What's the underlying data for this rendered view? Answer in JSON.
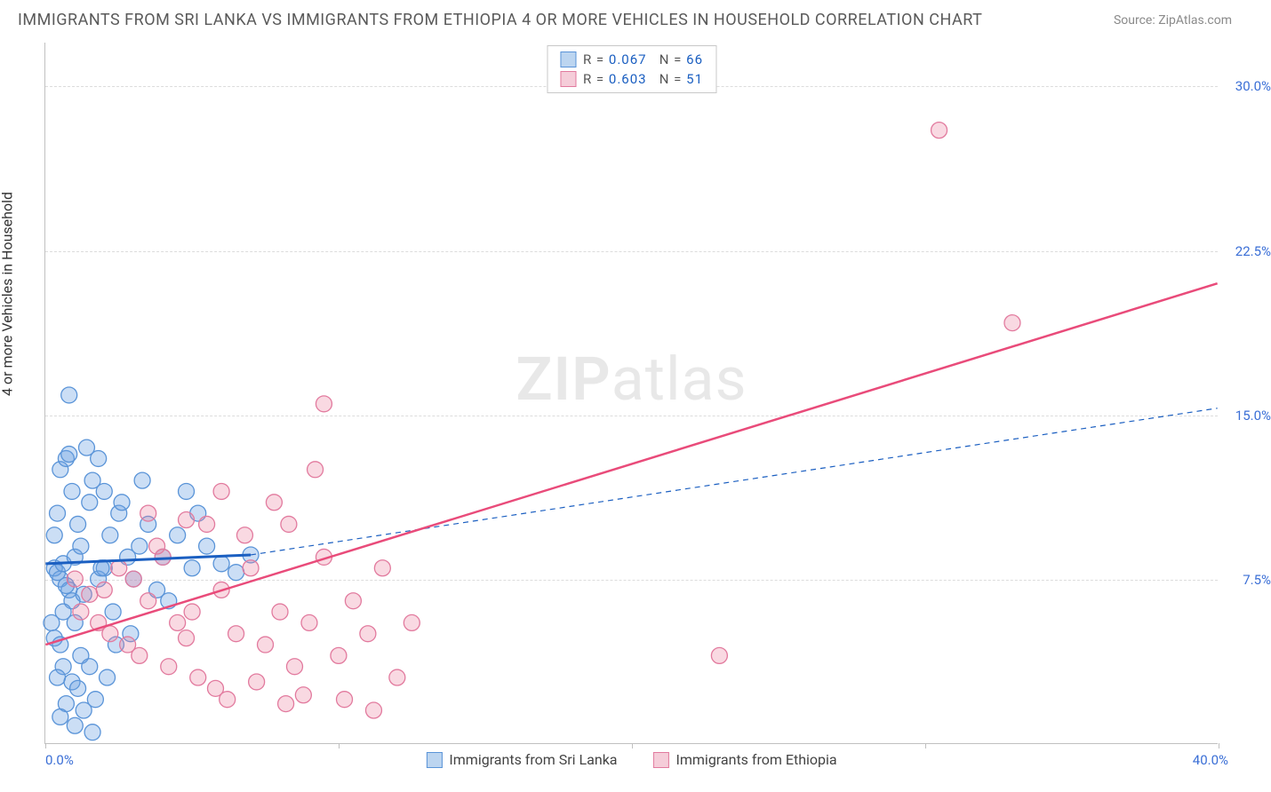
{
  "title": "IMMIGRANTS FROM SRI LANKA VS IMMIGRANTS FROM ETHIOPIA 4 OR MORE VEHICLES IN HOUSEHOLD CORRELATION CHART",
  "source": "Source: ZipAtlas.com",
  "y_axis_label": "4 or more Vehicles in Household",
  "watermark_a": "ZIP",
  "watermark_b": "atlas",
  "chart": {
    "type": "scatter",
    "xlim": [
      0,
      40
    ],
    "ylim": [
      0,
      32
    ],
    "background_color": "#ffffff",
    "grid_color": "#dcdcdc",
    "axis_color": "#c0c0c0",
    "y_ticks": [
      7.5,
      15.0,
      22.5,
      30.0
    ],
    "y_tick_labels": [
      "7.5%",
      "15.0%",
      "22.5%",
      "30.0%"
    ],
    "y_tick_color": "#3b6fd6",
    "x_ticks": [
      0,
      10,
      20,
      30,
      40
    ],
    "x_limit_labels": {
      "min": "0.0%",
      "max": "40.0%",
      "color": "#3b6fd6"
    },
    "series": [
      {
        "name": "Immigrants from Sri Lanka",
        "marker_fill": "rgba(105,160,225,0.35)",
        "marker_stroke": "#5a94d8",
        "marker_radius": 9,
        "swatch_fill": "#bcd5f0",
        "swatch_border": "#5a94d8",
        "R": "0.067",
        "N": "66",
        "trend": {
          "x1": 0,
          "y1": 8.2,
          "x2": 7,
          "y2": 8.6,
          "color": "#1b5fc1",
          "width": 3,
          "dash": "none",
          "extend_x2": 40,
          "extend_y2": 15.3,
          "extend_dash": "6,5",
          "extend_width": 1.2
        },
        "points": [
          [
            0.3,
            8.0
          ],
          [
            0.5,
            7.5
          ],
          [
            0.4,
            7.8
          ],
          [
            0.6,
            8.2
          ],
          [
            0.8,
            7.0
          ],
          [
            0.3,
            9.5
          ],
          [
            0.9,
            6.5
          ],
          [
            1.0,
            8.5
          ],
          [
            0.7,
            7.2
          ],
          [
            1.2,
            9.0
          ],
          [
            0.4,
            10.5
          ],
          [
            1.5,
            11.0
          ],
          [
            0.6,
            6.0
          ],
          [
            1.8,
            7.5
          ],
          [
            2.0,
            8.0
          ],
          [
            0.5,
            12.5
          ],
          [
            0.2,
            5.5
          ],
          [
            1.3,
            6.8
          ],
          [
            1.1,
            10.0
          ],
          [
            0.9,
            11.5
          ],
          [
            2.2,
            9.5
          ],
          [
            0.7,
            13.0
          ],
          [
            1.6,
            12.0
          ],
          [
            0.3,
            4.8
          ],
          [
            2.5,
            10.5
          ],
          [
            1.0,
            5.5
          ],
          [
            1.4,
            13.5
          ],
          [
            0.8,
            13.2
          ],
          [
            0.5,
            4.5
          ],
          [
            2.8,
            8.5
          ],
          [
            1.2,
            4.0
          ],
          [
            2.0,
            11.5
          ],
          [
            0.6,
            3.5
          ],
          [
            3.0,
            7.5
          ],
          [
            1.8,
            13.0
          ],
          [
            0.4,
            3.0
          ],
          [
            1.5,
            3.5
          ],
          [
            3.2,
            9.0
          ],
          [
            0.9,
            2.8
          ],
          [
            2.3,
            6.0
          ],
          [
            1.1,
            2.5
          ],
          [
            3.5,
            10.0
          ],
          [
            1.7,
            2.0
          ],
          [
            0.7,
            1.8
          ],
          [
            4.0,
            8.5
          ],
          [
            2.1,
            3.0
          ],
          [
            1.3,
            1.5
          ],
          [
            4.5,
            9.5
          ],
          [
            0.5,
            1.2
          ],
          [
            3.8,
            7.0
          ],
          [
            1.0,
            0.8
          ],
          [
            2.6,
            11.0
          ],
          [
            5.0,
            8.0
          ],
          [
            1.6,
            0.5
          ],
          [
            4.2,
            6.5
          ],
          [
            5.5,
            9.0
          ],
          [
            0.8,
            15.9
          ],
          [
            6.0,
            8.2
          ],
          [
            2.4,
            4.5
          ],
          [
            6.5,
            7.8
          ],
          [
            5.2,
            10.5
          ],
          [
            4.8,
            11.5
          ],
          [
            3.3,
            12.0
          ],
          [
            7.0,
            8.6
          ],
          [
            2.9,
            5.0
          ],
          [
            1.9,
            8.0
          ]
        ]
      },
      {
        "name": "Immigrants from Ethiopia",
        "marker_fill": "rgba(235,130,160,0.30)",
        "marker_stroke": "#e27a9e",
        "marker_radius": 9,
        "swatch_fill": "#f5cdd9",
        "swatch_border": "#e27a9e",
        "R": "0.603",
        "N": "51",
        "trend": {
          "x1": 0,
          "y1": 4.5,
          "x2": 40,
          "y2": 21.0,
          "color": "#e94b7a",
          "width": 2.5,
          "dash": "none"
        },
        "points": [
          [
            1.0,
            7.5
          ],
          [
            1.5,
            6.8
          ],
          [
            2.0,
            7.0
          ],
          [
            1.2,
            6.0
          ],
          [
            2.5,
            8.0
          ],
          [
            1.8,
            5.5
          ],
          [
            3.0,
            7.5
          ],
          [
            2.2,
            5.0
          ],
          [
            3.5,
            6.5
          ],
          [
            2.8,
            4.5
          ],
          [
            4.0,
            8.5
          ],
          [
            3.2,
            4.0
          ],
          [
            4.5,
            5.5
          ],
          [
            3.8,
            9.0
          ],
          [
            5.0,
            6.0
          ],
          [
            4.2,
            3.5
          ],
          [
            5.5,
            10.0
          ],
          [
            4.8,
            4.8
          ],
          [
            6.0,
            7.0
          ],
          [
            5.2,
            3.0
          ],
          [
            6.5,
            5.0
          ],
          [
            5.8,
            2.5
          ],
          [
            7.0,
            8.0
          ],
          [
            6.2,
            2.0
          ],
          [
            7.5,
            4.5
          ],
          [
            6.8,
            9.5
          ],
          [
            8.0,
            6.0
          ],
          [
            7.2,
            2.8
          ],
          [
            8.5,
            3.5
          ],
          [
            7.8,
            11.0
          ],
          [
            9.0,
            5.5
          ],
          [
            8.2,
            1.8
          ],
          [
            9.5,
            8.5
          ],
          [
            8.8,
            2.2
          ],
          [
            10.0,
            4.0
          ],
          [
            9.2,
            12.5
          ],
          [
            10.5,
            6.5
          ],
          [
            11.0,
            5.0
          ],
          [
            10.2,
            2.0
          ],
          [
            11.5,
            8.0
          ],
          [
            12.0,
            3.0
          ],
          [
            11.2,
            1.5
          ],
          [
            12.5,
            5.5
          ],
          [
            9.5,
            15.5
          ],
          [
            8.3,
            10.0
          ],
          [
            23.0,
            4.0
          ],
          [
            33.0,
            19.2
          ],
          [
            30.5,
            28.0
          ],
          [
            6.0,
            11.5
          ],
          [
            3.5,
            10.5
          ],
          [
            4.8,
            10.2
          ]
        ]
      }
    ]
  },
  "legend_stat_label_R": "R =",
  "legend_stat_label_N": "N =",
  "legend_stat_value_color": "#1b5fc1",
  "legend_stat_label_color": "#555555"
}
